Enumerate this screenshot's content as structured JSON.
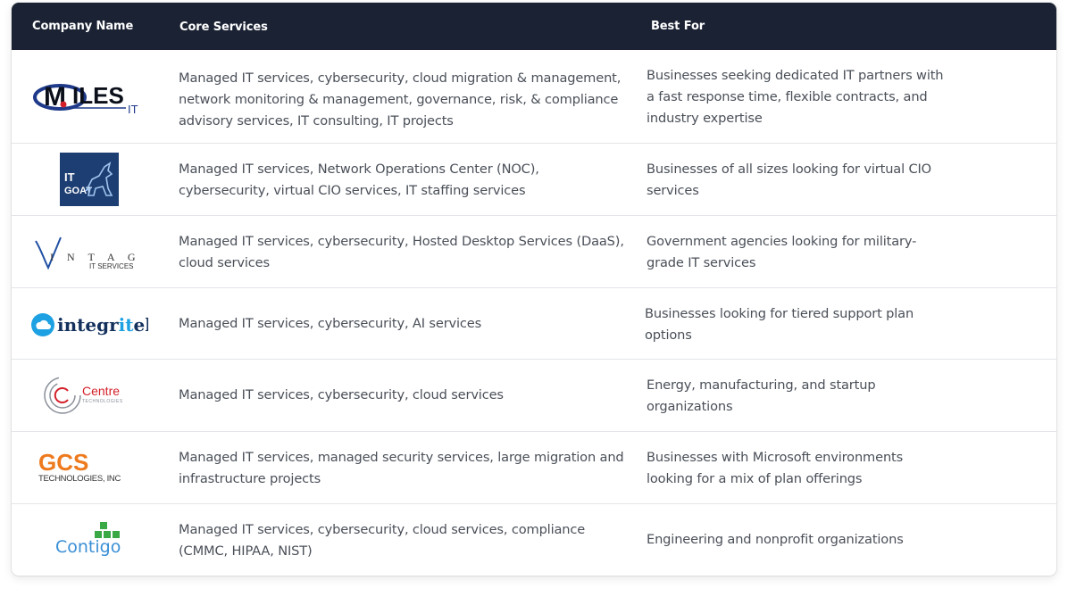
{
  "table": {
    "headers": {
      "company": "Company Name",
      "services": "Core Services",
      "best_for": "Best For"
    },
    "rows": [
      {
        "company": "Miles IT",
        "logo_text": "MILES IT",
        "services": "Managed IT services, cybersecurity, cloud migration & management, network monitoring & management, governance, risk, & compliance advisory services, IT consulting, IT projects",
        "best_for": "Businesses seeking dedicated IT partners with a fast response time, flexible contracts, and industry expertise"
      },
      {
        "company": "IT GOAT",
        "logo_text": "IT GOAT",
        "services": "Managed IT services, Network Operations Center (NOC), cybersecurity, virtual CIO services, IT staffing services",
        "best_for": "Businesses of all sizes looking for virtual CIO services"
      },
      {
        "company": "Vintage IT Services",
        "logo_text": "VINTAGE IT SERVICES",
        "services": "Managed IT services, cybersecurity, Hosted Desktop Services (DaaS), cloud services",
        "best_for": "Government agencies looking for military-grade IT services"
      },
      {
        "company": "integritek",
        "logo_text": "integritek",
        "services": "Managed IT services, cybersecurity, AI services",
        "best_for": "Businesses looking for tiered support plan options"
      },
      {
        "company": "Centre Technologies",
        "logo_text": "Centre TECHNOLOGIES",
        "services": "Managed IT services, cybersecurity, cloud services",
        "best_for": "Energy, manufacturing, and startup organizations"
      },
      {
        "company": "GCS Technologies, Inc",
        "logo_text": "GCS TECHNOLOGIES, INC",
        "services": "Managed IT services, managed security services, large migration and infrastructure projects",
        "best_for": "Businesses with Microsoft environments looking for a mix of plan offerings"
      },
      {
        "company": "Contigo",
        "logo_text": "Contigo",
        "services": "Managed IT services, cybersecurity, cloud services, compliance (CMMC, HIPAA, NIST)",
        "best_for": "Engineering and nonprofit organizations"
      }
    ]
  },
  "colors": {
    "header_bg": "#1b2233",
    "header_text": "#ffffff",
    "body_text": "#4a4f58",
    "row_divider": "#e3e5e8"
  }
}
